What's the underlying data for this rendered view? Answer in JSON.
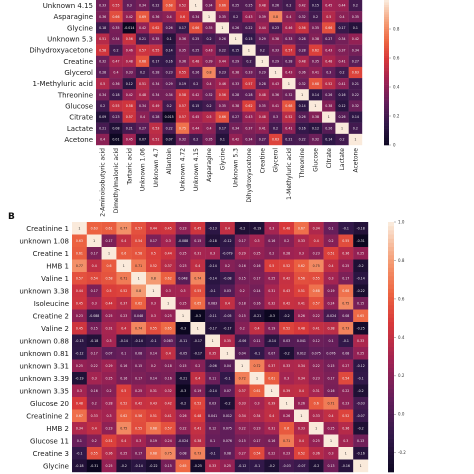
{
  "panel_a": {
    "letter": "",
    "rows": [
      "Unknown 4.15",
      "Asparagine",
      "Glycine",
      "Unknown 5.3",
      "Dihydroxyacetone",
      "Creatine",
      "Glycerol",
      "1-Methyluric acid",
      "Threonine",
      "Glucose",
      "Citrate",
      "Lactate",
      "Acetone"
    ],
    "cols": [
      "2-Aminoisobutyric acid",
      "Dimethylmalonic acid",
      "Tartaric acid",
      "Unknown 1.06",
      "Unknown 4.7",
      "Allantoin",
      "Unknown 4.72",
      "Unknown 4.15",
      "Asparagine",
      "Glycine",
      "Unknown 5.3",
      "Dihydroxyacetone",
      "Creatine",
      "Glycerol",
      "1-Methyluric acid",
      "Threonine",
      "Glucose",
      "Citrate",
      "Lactate",
      "Acetone"
    ],
    "colorbar_ticks": [
      "0.8",
      "0.6",
      "0.4",
      "0.2",
      "0"
    ]
  },
  "panel_b": {
    "letter": "B",
    "rows": [
      "Creatinine 1",
      "unknown 1.08",
      "Creatine 1",
      "HMB 1",
      "Valine 1",
      "unknown 3.38",
      "Isoleucine",
      "Creatine 2",
      "Valine 2",
      "unknown 0.88",
      "unknown 0.81",
      "unknown 3.31",
      "unknown 3.39",
      "unknown 3.35",
      "Glucose 20",
      "Creatinine 2",
      "HMB 2",
      "Glucose 11",
      "Creatine 3",
      "Glycine"
    ],
    "ncols": 20,
    "colorbar_ticks": [
      "1.0",
      "0.8",
      "0.6",
      "0.4",
      "0.2",
      "0.0",
      "-0.2"
    ]
  },
  "chart_data": [
    {
      "type": "heatmap",
      "title": "",
      "panel": "A",
      "y": [
        "Unknown 4.15",
        "Asparagine",
        "Glycine",
        "Unknown 5.3",
        "Dihydroxyacetone",
        "Creatine",
        "Glycerol",
        "1-Methyluric acid",
        "Threonine",
        "Glucose",
        "Citrate",
        "Lactate",
        "Acetone"
      ],
      "x": [
        "2-Aminoisobutyric acid",
        "Dimethylmalonic acid",
        "Tartaric acid",
        "Unknown 1.06",
        "Unknown 4.7",
        "Allantoin",
        "Unknown 4.72",
        "Unknown 4.15",
        "Asparagine",
        "Glycine",
        "Unknown 5.3",
        "Dihydroxyacetone",
        "Creatine",
        "Glycerol",
        "1-Methyluric acid",
        "Threonine",
        "Glucose",
        "Citrate",
        "Lactate",
        "Acetone"
      ],
      "values": [
        [
          0.33,
          0.55,
          0.3,
          0.34,
          0.22,
          0.68,
          0.52,
          1,
          0.34,
          0.66,
          0.25,
          0.25,
          0.48,
          0.26,
          0.2,
          0.42,
          0.15,
          0.45,
          0.44,
          0.2
        ],
        [
          0.36,
          0.66,
          0.42,
          0.69,
          0.36,
          0.4,
          0.6,
          0.34,
          1,
          0.35,
          0.2,
          0.43,
          0.39,
          0.8,
          0.4,
          0.32,
          0.2,
          0.5,
          0.4,
          0.35
        ],
        [
          0.18,
          0.35,
          -0.014,
          0.42,
          0.62,
          0.26,
          0.17,
          0.66,
          0.35,
          1,
          0.26,
          0.22,
          0.44,
          0.23,
          0.46,
          0.56,
          0.35,
          0.66,
          0.17,
          0.1
        ],
        [
          0.51,
          0.34,
          0.56,
          0.21,
          0.35,
          0.1,
          0.36,
          0.25,
          0.2,
          0.26,
          1,
          0.15,
          0.29,
          0.38,
          0.33,
          0.28,
          0.38,
          0.27,
          0.34,
          0.42
        ],
        [
          0.58,
          0.2,
          0.46,
          0.57,
          0.55,
          0.14,
          0.35,
          0.25,
          0.43,
          0.22,
          0.15,
          1,
          0.2,
          0.33,
          0.57,
          0.28,
          0.62,
          0.43,
          0.37,
          0.34
        ],
        [
          0.32,
          0.47,
          0.48,
          0.68,
          0.17,
          0.16,
          0.36,
          0.48,
          0.39,
          0.44,
          0.29,
          0.2,
          1,
          0.29,
          0.28,
          0.48,
          0.35,
          0.48,
          0.41,
          0.27
        ],
        [
          0.28,
          0.4,
          0.33,
          0.2,
          0.28,
          0.23,
          0.55,
          0.26,
          0.8,
          0.23,
          0.38,
          0.33,
          0.29,
          1,
          0.43,
          0.36,
          0.41,
          0.3,
          0.2,
          0.63
        ],
        [
          0.5,
          0.36,
          0.12,
          0.51,
          0.34,
          0.29,
          0.19,
          0.2,
          0.4,
          0.46,
          0.33,
          0.57,
          0.28,
          0.43,
          1,
          0.32,
          0.68,
          0.52,
          0.41,
          0.21
        ],
        [
          0.34,
          0.18,
          0.42,
          0.48,
          0.34,
          0.34,
          0.58,
          0.42,
          0.32,
          0.56,
          0.28,
          0.28,
          0.48,
          0.36,
          0.32,
          1,
          0.14,
          0.26,
          0.16,
          0.22
        ],
        [
          0.2,
          0.55,
          0.58,
          0.34,
          0.49,
          0.2,
          0.57,
          0.15,
          0.2,
          0.35,
          0.38,
          0.62,
          0.35,
          0.41,
          0.68,
          0.14,
          1,
          0.38,
          0.12,
          0.32
        ],
        [
          0.09,
          0.23,
          0.57,
          0.4,
          0.28,
          0.015,
          0.57,
          0.45,
          0.5,
          0.66,
          0.27,
          0.43,
          0.48,
          0.3,
          0.52,
          0.26,
          0.38,
          1,
          0.26,
          0.14
        ],
        [
          0.21,
          0.08,
          0.21,
          0.27,
          0.53,
          0.22,
          0.75,
          0.44,
          0.4,
          0.17,
          0.34,
          0.37,
          0.41,
          0.2,
          0.41,
          0.16,
          0.12,
          0.26,
          1,
          0.2
        ],
        [
          0.4,
          0.01,
          0.45,
          0.07,
          0.51,
          0.07,
          0.32,
          0.2,
          0.35,
          0.1,
          0.42,
          0.34,
          0.27,
          0.63,
          0.21,
          0.22,
          0.32,
          0.14,
          0.2,
          1
        ]
      ],
      "colorbar": {
        "min": 0,
        "max": 1,
        "ticks": [
          0.8,
          0.6,
          0.4,
          0.2,
          0
        ]
      }
    },
    {
      "type": "heatmap",
      "title": "",
      "panel": "B",
      "y": [
        "Creatinine 1",
        "unknown 1.08",
        "Creatine 1",
        "HMB 1",
        "Valine 1",
        "unknown 3.38",
        "Isoleucine",
        "Creatine 2",
        "Valine 2",
        "unknown 0.88",
        "unknown 0.81",
        "unknown 3.31",
        "unknown 3.39",
        "unknown 3.35",
        "Glucose 20",
        "Creatinine 2",
        "HMB 2",
        "Glucose 11",
        "Creatine 3",
        "Glycine"
      ],
      "values": [
        [
          1,
          0.63,
          0.61,
          0.77,
          0.57,
          0.44,
          0.45,
          0.23,
          0.45,
          -0.13,
          0.4,
          -0.2,
          -0.19,
          0.3,
          0.48,
          0.67,
          0.34,
          0.1,
          -0.1,
          -0.18
        ],
        [
          0.63,
          1,
          0.17,
          0.4,
          0.54,
          0.17,
          0.3,
          -0.088,
          0.15,
          -0.18,
          -0.12,
          0.17,
          0.3,
          0.16,
          0.2,
          0.33,
          0.4,
          0.2,
          0.55,
          -0.31
        ],
        [
          0.61,
          0.17,
          1,
          0.6,
          0.58,
          0.5,
          0.44,
          0.25,
          0.31,
          0.3,
          -0.079,
          0.29,
          0.25,
          0.2,
          0.28,
          0.3,
          0.23,
          0.51,
          0.36,
          0.25
        ],
        [
          0.77,
          0.4,
          0.6,
          1,
          0.71,
          0.52,
          0.37,
          0.23,
          0.4,
          -0.14,
          0.2,
          0.16,
          0.16,
          0.5,
          0.52,
          0.62,
          0.75,
          0.4,
          0.25,
          -0.2
        ],
        [
          0.57,
          0.54,
          0.58,
          0.71,
          1,
          0.8,
          0.62,
          0.048,
          0.74,
          -0.14,
          -0.08,
          0.15,
          0.17,
          0.25,
          0.42,
          0.56,
          0.55,
          0.3,
          0.17,
          -0.14
        ],
        [
          0.44,
          0.17,
          0.5,
          0.52,
          0.8,
          1,
          0.3,
          0.3,
          0.55,
          -0.1,
          0.03,
          0.2,
          0.14,
          0.31,
          0.43,
          0.51,
          0.68,
          0.19,
          0.68,
          -0.22
        ],
        [
          0.45,
          0.3,
          0.44,
          0.37,
          0.62,
          0.3,
          1,
          0.25,
          0.65,
          0.083,
          0.4,
          0.18,
          0.16,
          0.32,
          0.42,
          0.41,
          0.57,
          0.24,
          0.75,
          0.15
        ],
        [
          0.23,
          -0.088,
          0.25,
          0.23,
          0.048,
          0.3,
          0.25,
          1,
          -0.3,
          -0.11,
          -0.05,
          0.15,
          -0.21,
          -0.3,
          -0.2,
          0.26,
          0.22,
          -0.024,
          0.08,
          0.65
        ],
        [
          0.45,
          0.15,
          0.31,
          0.4,
          0.74,
          0.55,
          0.65,
          -0.3,
          1,
          -0.17,
          -0.17,
          0.2,
          0.4,
          0.19,
          0.52,
          0.48,
          0.41,
          0.38,
          0.73,
          -0.25
        ],
        [
          -0.13,
          -0.18,
          0.3,
          -0.14,
          -0.14,
          -0.1,
          0.083,
          -0.11,
          -0.17,
          1,
          0.35,
          -0.06,
          0.11,
          -0.14,
          0.03,
          0.041,
          0.12,
          0.1,
          -0.1,
          0.33
        ],
        [
          -0.12,
          0.17,
          0.07,
          0.1,
          0.08,
          0.14,
          0.4,
          -0.05,
          -0.17,
          0.35,
          1,
          0.04,
          -0.1,
          0.07,
          -0.2,
          0.012,
          0.075,
          0.076,
          0.08,
          0.25
        ],
        [
          0.25,
          0.22,
          0.29,
          0.16,
          0.15,
          0.2,
          0.18,
          0.15,
          0.2,
          -0.06,
          0.04,
          1,
          0.72,
          0.37,
          0.33,
          0.34,
          0.22,
          0.15,
          0.27,
          -0.12
        ],
        [
          -0.19,
          0.3,
          0.25,
          0.16,
          0.17,
          0.14,
          0.16,
          -0.21,
          0.4,
          0.11,
          -0.1,
          0.72,
          1,
          0.61,
          0.3,
          0.34,
          0.23,
          0.17,
          0.54,
          -0.1
        ],
        [
          0.3,
          0.16,
          0.2,
          0.5,
          0.25,
          0.31,
          0.32,
          -0.3,
          0.19,
          -0.14,
          0.07,
          0.37,
          0.61,
          1,
          0.39,
          0.4,
          0.31,
          0.16,
          0.22,
          -0.2
        ],
        [
          0.48,
          0.2,
          0.28,
          0.52,
          0.42,
          0.43,
          0.42,
          -0.2,
          0.52,
          0.03,
          -0.2,
          0.33,
          0.3,
          0.39,
          1,
          0.26,
          0.6,
          0.71,
          0.23,
          -0.03
        ],
        [
          0.67,
          0.33,
          0.3,
          0.62,
          0.56,
          0.51,
          0.41,
          0.26,
          0.48,
          0.041,
          0.012,
          0.34,
          0.34,
          0.4,
          0.26,
          1,
          0.33,
          0.4,
          0.52,
          -0.07
        ],
        [
          0.34,
          0.4,
          0.23,
          0.75,
          0.55,
          0.68,
          0.57,
          0.22,
          0.41,
          0.12,
          0.075,
          0.22,
          0.23,
          0.31,
          0.6,
          0.33,
          1,
          0.25,
          0.36,
          -0.2
        ],
        [
          0.1,
          0.2,
          0.51,
          0.4,
          0.3,
          0.19,
          0.24,
          -0.024,
          0.38,
          0.1,
          0.076,
          0.15,
          0.17,
          0.16,
          0.71,
          0.4,
          0.25,
          1,
          0.3,
          0.13
        ],
        [
          -0.1,
          0.55,
          0.36,
          0.25,
          0.17,
          0.68,
          0.75,
          0.08,
          0.73,
          -0.1,
          0.08,
          0.27,
          0.54,
          0.22,
          0.23,
          0.52,
          0.36,
          0.3,
          1,
          -0.16
        ],
        [
          -0.18,
          -0.31,
          0.25,
          -0.2,
          -0.14,
          -0.22,
          0.15,
          0.65,
          -0.25,
          0.33,
          0.25,
          -0.12,
          -0.1,
          -0.2,
          -0.03,
          -0.07,
          -0.2,
          0.13,
          -0.16,
          1
        ]
      ],
      "colorbar": {
        "min": -0.3,
        "max": 1,
        "ticks": [
          1.0,
          0.8,
          0.6,
          0.4,
          0.2,
          0.0,
          -0.2
        ]
      }
    }
  ]
}
